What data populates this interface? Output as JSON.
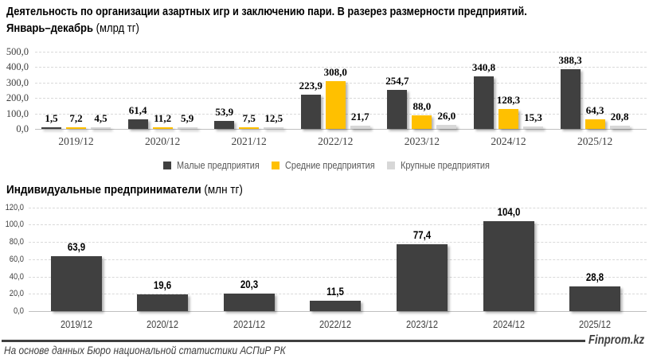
{
  "header": {
    "title": "Деятельность по организации азартных игр и заключению пари. В разерез размерности предприятий.",
    "subtitle_bold": "Январь–декабрь",
    "subtitle_unit": " (млрд тг)"
  },
  "section2": {
    "title_bold": "Индивидуальные предприниматели",
    "title_unit": " (млн тг)"
  },
  "chart_data": [
    {
      "type": "bar",
      "title": "Деятельность по организации азартных игр и заключению пари. В разерез размерности предприятий. Январь–декабрь",
      "ylabel": "млрд тг",
      "categories": [
        "2019/12",
        "2020/12",
        "2021/12",
        "2022/12",
        "2023/12",
        "2024/12",
        "2025/12"
      ],
      "series": [
        {
          "name": "Малые предприятия",
          "color": "#404040",
          "values": [
            1.5,
            61.4,
            53.9,
            223.9,
            254.7,
            340.8,
            388.3
          ]
        },
        {
          "name": "Средние предприятия",
          "color": "#FFC000",
          "values": [
            7.2,
            11.2,
            7.5,
            308.0,
            88.0,
            128.3,
            64.3
          ]
        },
        {
          "name": "Крупные предприятия",
          "color": "#D7D7D7",
          "values": [
            4.5,
            5.9,
            12.5,
            21.7,
            26.0,
            15.3,
            20.8
          ]
        }
      ],
      "ylim": [
        0,
        500
      ],
      "ytick_step": 100,
      "grid": true,
      "legend_position": "bottom"
    },
    {
      "type": "bar",
      "title": "Индивидуальные предприниматели",
      "ylabel": "млн тг",
      "categories": [
        "2019/12",
        "2020/12",
        "2021/12",
        "2022/12",
        "2023/12",
        "2024/12",
        "2025/12"
      ],
      "series": [
        {
          "name": "Индивидуальные предприниматели",
          "color": "#404040",
          "values": [
            63.9,
            19.6,
            20.3,
            11.5,
            77.4,
            104.0,
            28.8
          ]
        }
      ],
      "ylim": [
        0,
        120
      ],
      "ytick_step": 20,
      "grid": true,
      "legend_position": "none"
    }
  ],
  "footer": {
    "source": "На основе данных Бюро национальной статистики АСПиР РК",
    "brand": "Finprom.kz"
  }
}
